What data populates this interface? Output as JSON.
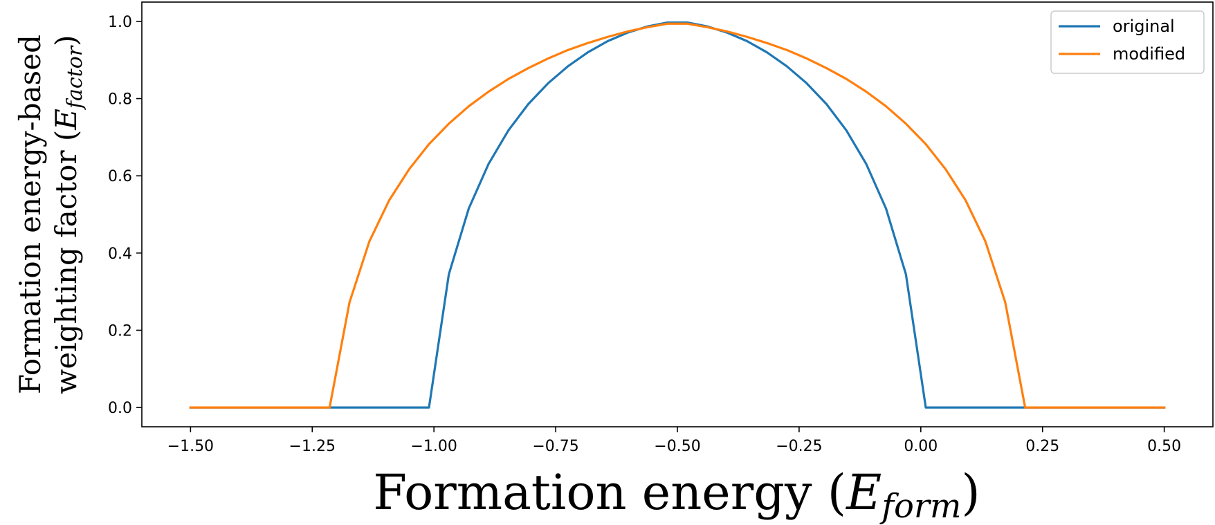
{
  "chart_data": {
    "type": "line",
    "title": "",
    "xlabel": {
      "main": "Formation energy (",
      "sym": "E",
      "sub": "form",
      "close": ")"
    },
    "ylabel": {
      "line1": "Formation energy-based",
      "line2_main": "weighting factor (",
      "sym": "E",
      "sub": "factor",
      "close": ")"
    },
    "xlim": [
      -1.6,
      0.6
    ],
    "ylim": [
      -0.05,
      1.05
    ],
    "xticks": [
      -1.5,
      -1.25,
      -1.0,
      -0.75,
      -0.5,
      -0.25,
      0.0,
      0.25,
      0.5
    ],
    "xtick_labels": [
      "−1.50",
      "−1.25",
      "−1.00",
      "−0.75",
      "−0.50",
      "−0.25",
      "0.00",
      "0.25",
      "0.50"
    ],
    "yticks": [
      0.0,
      0.2,
      0.4,
      0.6,
      0.8,
      1.0
    ],
    "ytick_labels": [
      "0.0",
      "0.2",
      "0.4",
      "0.6",
      "0.8",
      "1.0"
    ],
    "grid": false,
    "legend_position": "top-right",
    "series": [
      {
        "name": "original",
        "color": "#1f77b4",
        "x": [
          -1.5,
          -1.0102,
          -0.9694,
          -0.9286,
          -0.8878,
          -0.8469,
          -0.8061,
          -0.7653,
          -0.7245,
          -0.6837,
          -0.6429,
          -0.602,
          -0.5612,
          -0.5204,
          -0.4796,
          -0.4388,
          -0.398,
          -0.3571,
          -0.3163,
          -0.2755,
          -0.2347,
          -0.1939,
          -0.1531,
          -0.1122,
          -0.0714,
          -0.0306,
          0.0102,
          0.5
        ],
        "y": [
          0.0,
          0.0,
          0.345,
          0.515,
          0.631,
          0.718,
          0.786,
          0.84,
          0.884,
          0.92,
          0.949,
          0.971,
          0.987,
          0.997,
          0.997,
          0.987,
          0.971,
          0.949,
          0.92,
          0.884,
          0.84,
          0.786,
          0.718,
          0.631,
          0.515,
          0.345,
          0.0,
          0.0
        ]
      },
      {
        "name": "modified",
        "color": "#ff7f0e",
        "x": [
          -1.5,
          -1.2143,
          -1.1735,
          -1.1327,
          -1.0918,
          -1.051,
          -1.0102,
          -0.9694,
          -0.9286,
          -0.8878,
          -0.8469,
          -0.8061,
          -0.7653,
          -0.7245,
          -0.6837,
          -0.6429,
          -0.602,
          -0.5612,
          -0.5204,
          -0.4796,
          -0.4388,
          -0.398,
          -0.3571,
          -0.3163,
          -0.2755,
          -0.2347,
          -0.1939,
          -0.1531,
          -0.1122,
          -0.0714,
          -0.0306,
          0.0102,
          0.051,
          0.0918,
          0.1327,
          0.1735,
          0.2143,
          0.5
        ],
        "y": [
          0.0,
          0.0,
          0.272,
          0.43,
          0.537,
          0.617,
          0.682,
          0.735,
          0.78,
          0.818,
          0.851,
          0.879,
          0.904,
          0.926,
          0.944,
          0.96,
          0.974,
          0.985,
          0.994,
          0.994,
          0.985,
          0.974,
          0.96,
          0.944,
          0.926,
          0.904,
          0.879,
          0.851,
          0.818,
          0.78,
          0.735,
          0.682,
          0.617,
          0.537,
          0.43,
          0.272,
          0.0,
          0.0
        ]
      }
    ]
  }
}
